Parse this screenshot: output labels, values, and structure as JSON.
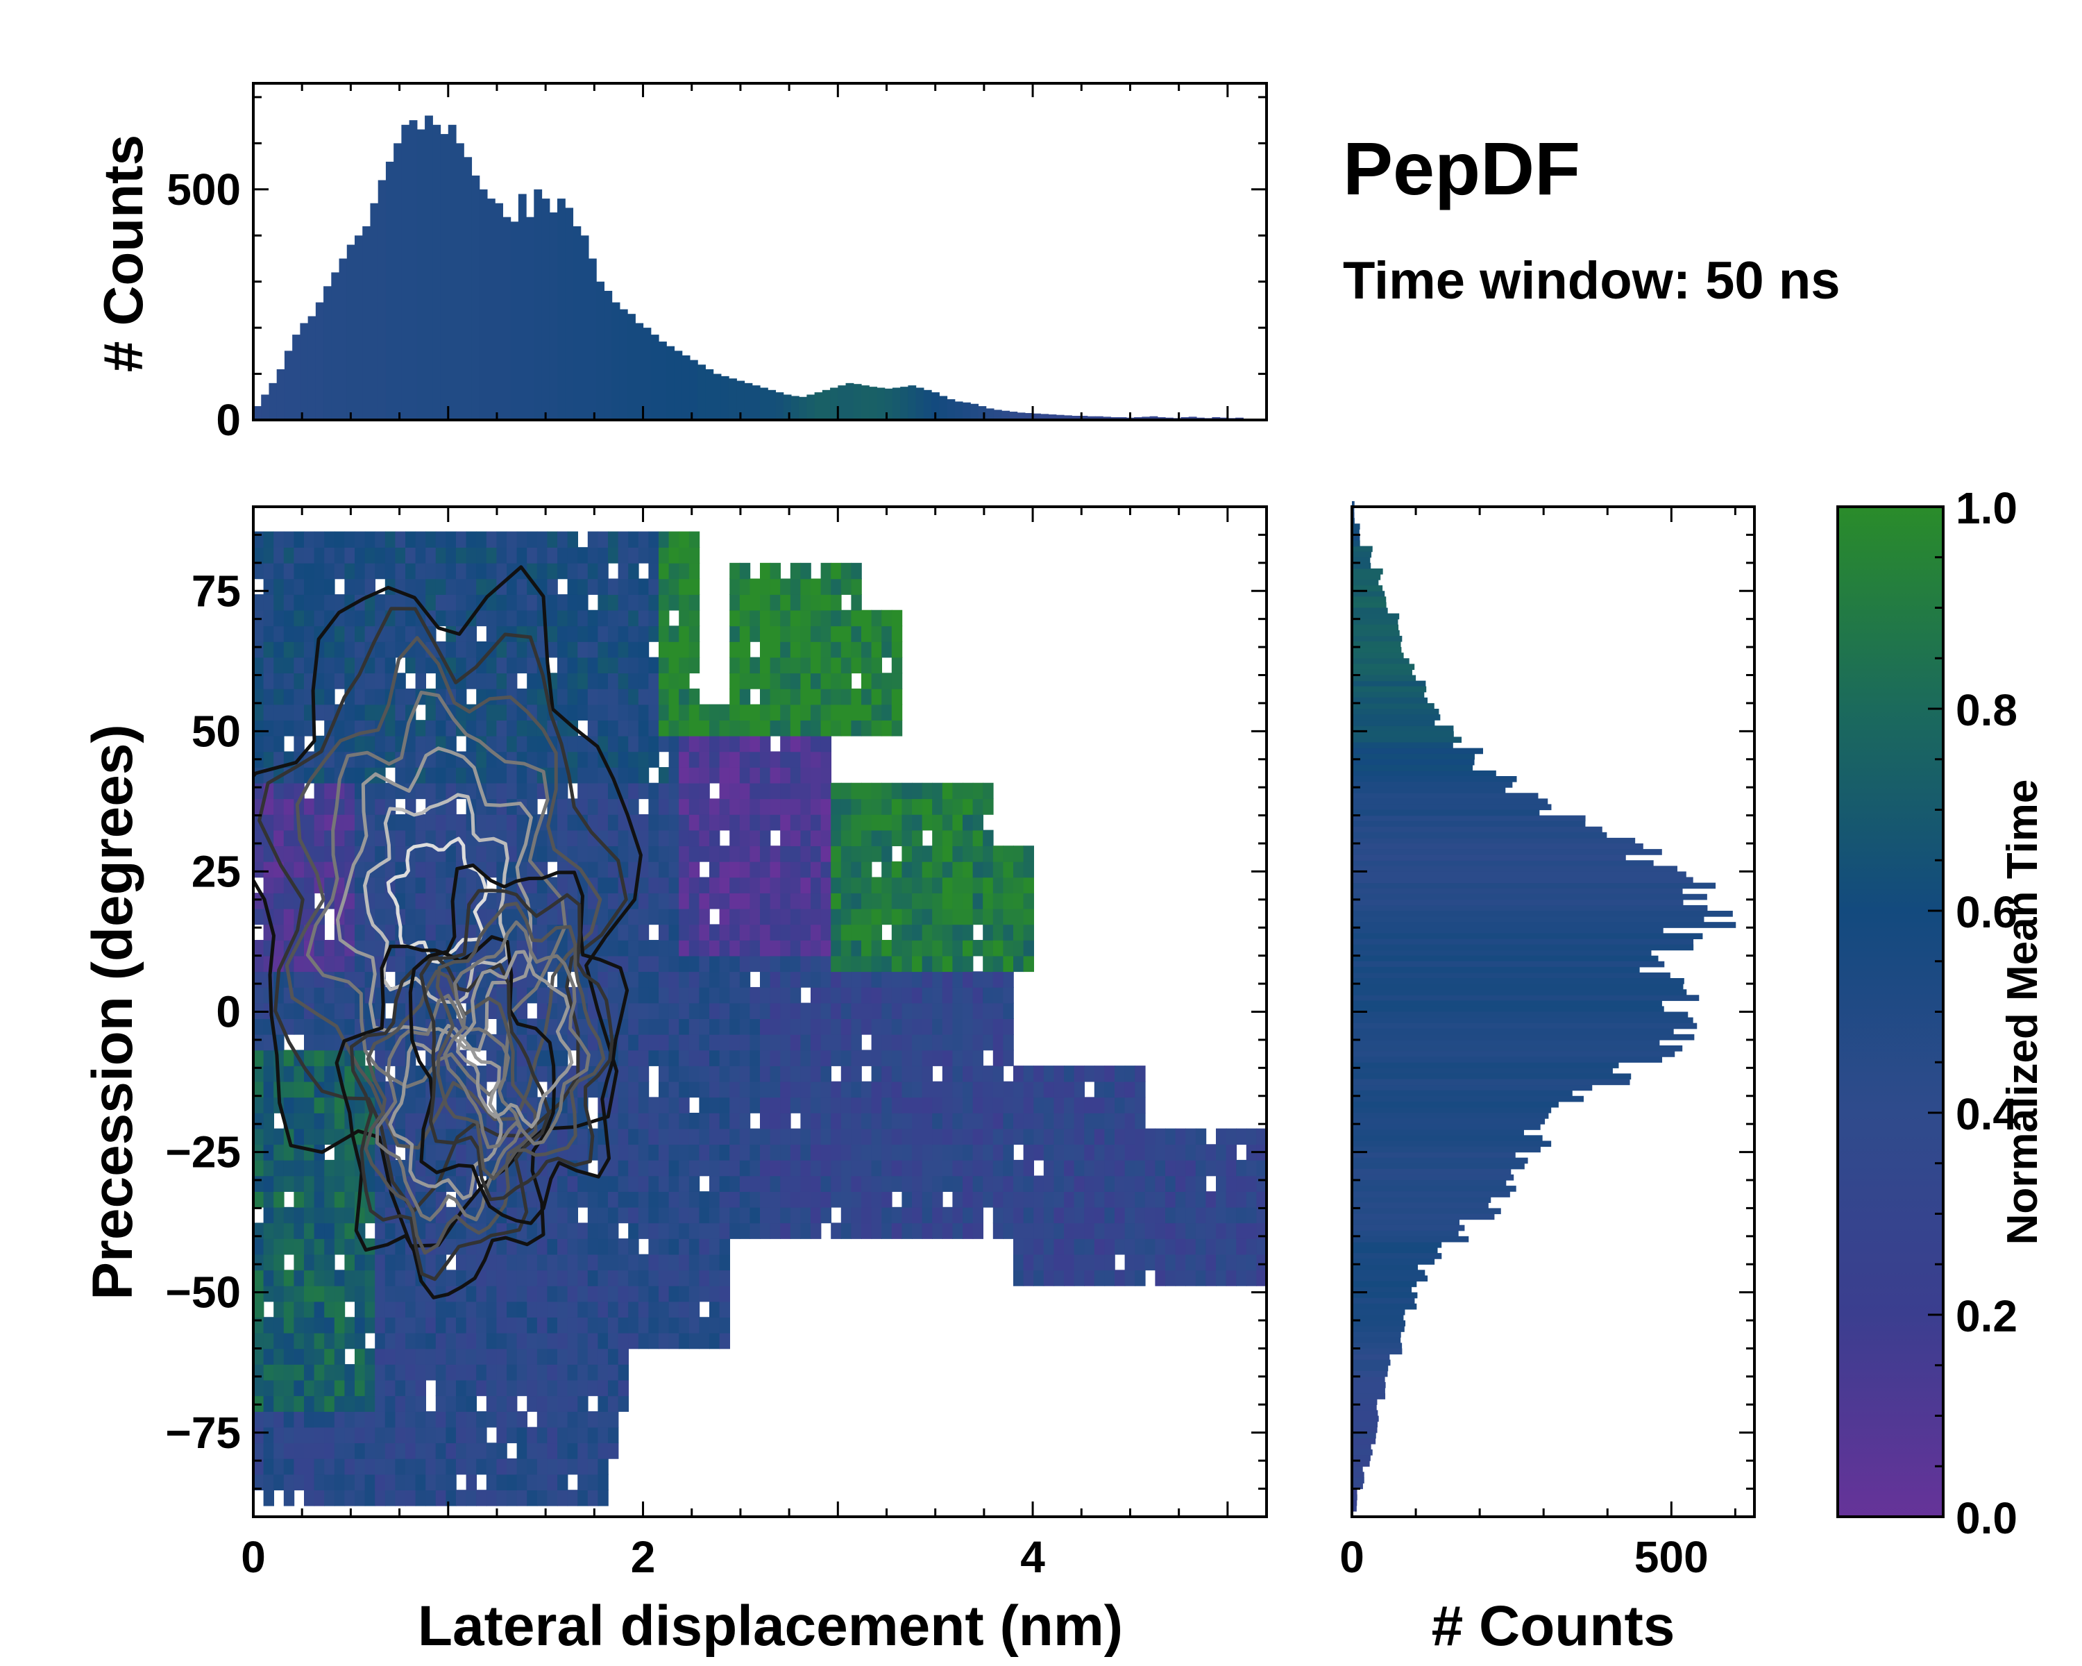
{
  "figure": {
    "title": "PepDF",
    "subtitle": "Time window: 50 ns"
  },
  "chart_data": [
    {
      "id": "top-histogram",
      "type": "bar",
      "title": "",
      "xlabel": "",
      "ylabel": "# Counts",
      "xlim": [
        0,
        5.2
      ],
      "ylim": [
        0,
        730
      ],
      "yticks": [
        0,
        500
      ],
      "bin_centers": [
        0.02,
        0.06,
        0.1,
        0.14,
        0.18,
        0.22,
        0.26,
        0.3,
        0.34,
        0.38,
        0.42,
        0.46,
        0.5,
        0.54,
        0.58,
        0.62,
        0.66,
        0.7,
        0.74,
        0.78,
        0.82,
        0.86,
        0.9,
        0.94,
        0.98,
        1.02,
        1.06,
        1.1,
        1.14,
        1.18,
        1.22,
        1.26,
        1.3,
        1.34,
        1.38,
        1.42,
        1.46,
        1.5,
        1.54,
        1.58,
        1.62,
        1.66,
        1.7,
        1.74,
        1.78,
        1.82,
        1.86,
        1.9,
        1.94,
        1.98,
        2.02,
        2.06,
        2.1,
        2.14,
        2.18,
        2.22,
        2.26,
        2.3,
        2.34,
        2.38,
        2.42,
        2.46,
        2.5,
        2.54,
        2.58,
        2.62,
        2.66,
        2.7,
        2.74,
        2.78,
        2.82,
        2.86,
        2.9,
        2.94,
        2.98,
        3.02,
        3.06,
        3.1,
        3.14,
        3.18,
        3.22,
        3.26,
        3.3,
        3.34,
        3.38,
        3.42,
        3.46,
        3.5,
        3.54,
        3.58,
        3.62,
        3.66,
        3.7,
        3.74,
        3.78,
        3.82,
        3.86,
        3.9,
        3.94,
        3.98,
        4.02,
        4.06,
        4.1,
        4.14,
        4.18,
        4.22,
        4.26,
        4.3,
        4.34,
        4.38,
        4.42,
        4.46,
        4.5,
        4.54,
        4.58,
        4.62,
        4.66,
        4.7,
        4.74,
        4.78,
        4.82,
        4.86,
        4.9,
        4.94,
        4.98,
        5.02,
        5.06,
        5.1,
        5.14,
        5.18
      ],
      "counts": [
        30,
        55,
        80,
        110,
        150,
        185,
        210,
        225,
        255,
        290,
        320,
        350,
        380,
        400,
        420,
        470,
        520,
        560,
        600,
        640,
        650,
        630,
        660,
        640,
        620,
        640,
        600,
        570,
        530,
        500,
        480,
        470,
        440,
        430,
        490,
        440,
        500,
        480,
        450,
        480,
        460,
        420,
        400,
        350,
        300,
        280,
        255,
        240,
        230,
        210,
        200,
        185,
        170,
        160,
        150,
        140,
        130,
        120,
        110,
        100,
        95,
        90,
        85,
        80,
        75,
        70,
        65,
        60,
        55,
        52,
        50,
        55,
        60,
        65,
        70,
        75,
        80,
        78,
        75,
        72,
        70,
        68,
        70,
        72,
        75,
        70,
        65,
        60,
        52,
        45,
        40,
        38,
        35,
        30,
        25,
        22,
        20,
        18,
        16,
        15,
        14,
        13,
        12,
        11,
        10,
        9,
        9,
        8,
        8,
        7,
        6,
        6,
        5,
        6,
        7,
        8,
        6,
        5,
        4,
        6,
        7,
        5,
        4,
        6,
        5,
        4,
        5
      ],
      "bar_mean_time": [
        0.42,
        0.43,
        0.44,
        0.44,
        0.45,
        0.45,
        0.46,
        0.46,
        0.46,
        0.47,
        0.47,
        0.47,
        0.48,
        0.48,
        0.48,
        0.48,
        0.48,
        0.49,
        0.49,
        0.49,
        0.49,
        0.5,
        0.5,
        0.5,
        0.5,
        0.5,
        0.5,
        0.5,
        0.5,
        0.51,
        0.51,
        0.51,
        0.51,
        0.52,
        0.52,
        0.52,
        0.53,
        0.53,
        0.53,
        0.54,
        0.54,
        0.55,
        0.55,
        0.55,
        0.56,
        0.56,
        0.57,
        0.57,
        0.58,
        0.58,
        0.58,
        0.59,
        0.59,
        0.6,
        0.6,
        0.6,
        0.6,
        0.61,
        0.61,
        0.61,
        0.61,
        0.62,
        0.62,
        0.62,
        0.62,
        0.63,
        0.63,
        0.64,
        0.66,
        0.68,
        0.7,
        0.72,
        0.74,
        0.74,
        0.73,
        0.72,
        0.72,
        0.73,
        0.74,
        0.74,
        0.73,
        0.72,
        0.7,
        0.68,
        0.66,
        0.64,
        0.62,
        0.6,
        0.58,
        0.56,
        0.54,
        0.52,
        0.5,
        0.48,
        0.46,
        0.44,
        0.42,
        0.4,
        0.38,
        0.37,
        0.36,
        0.35,
        0.34,
        0.34,
        0.34,
        0.33,
        0.33,
        0.33,
        0.32,
        0.32,
        0.32,
        0.32,
        0.31,
        0.31,
        0.31,
        0.31,
        0.3,
        0.3,
        0.3,
        0.3,
        0.3,
        0.3,
        0.3,
        0.3,
        0.3,
        0.3,
        0.3,
        0.3,
        0.3,
        0.3
      ]
    },
    {
      "id": "main-heatmap",
      "type": "heatmap",
      "title": "",
      "xlabel": "Lateral displacement (nm)",
      "ylabel": "Precession (degrees)",
      "xlim": [
        0,
        5.2
      ],
      "ylim": [
        -90,
        90
      ],
      "xticks": [
        0,
        2,
        4
      ],
      "yticks": [
        -75,
        -50,
        -25,
        0,
        25,
        50,
        75
      ],
      "grid": false,
      "colorbar_label": "Normalized Mean Time",
      "regions": [
        {
          "name": "main-cluster",
          "x_range": [
            0,
            2.6
          ],
          "y_range": [
            -88,
            88
          ],
          "mean_time": 0.45
        },
        {
          "name": "upper-right-lobe",
          "x_range": [
            2.1,
            3.3
          ],
          "y_range": [
            50,
            78
          ],
          "mean_time": 0.95
        },
        {
          "name": "middle-right-lobe",
          "x_range": [
            3.0,
            4.0
          ],
          "y_range": [
            8,
            42
          ],
          "mean_time": 0.9
        },
        {
          "name": "purple-band",
          "x_range": [
            2.2,
            3.0
          ],
          "y_range": [
            15,
            50
          ],
          "mean_time": 0.12
        },
        {
          "name": "lower-right-tail",
          "x_range": [
            2.6,
            5.2
          ],
          "y_range": [
            -48,
            -5
          ],
          "mean_time": 0.35
        },
        {
          "name": "left-green-band",
          "x_range": [
            0,
            0.6
          ],
          "y_range": [
            -70,
            -10
          ],
          "mean_time": 0.75
        }
      ],
      "density_peaks": [
        {
          "x": 0.95,
          "y": 20,
          "level": "highest"
        },
        {
          "x": 1.0,
          "y": -18,
          "level": "high"
        },
        {
          "x": 1.35,
          "y": -5,
          "level": "high"
        }
      ]
    },
    {
      "id": "right-histogram",
      "type": "bar",
      "orientation": "horizontal",
      "xlabel": "# Counts",
      "ylabel": "",
      "xlim": [
        0,
        630
      ],
      "xticks": [
        0,
        500
      ],
      "ylim": [
        -90,
        90
      ],
      "bin_centers": [
        -87,
        -83,
        -79,
        -75,
        -71,
        -67,
        -63,
        -59,
        -55,
        -51,
        -47,
        -43,
        -39,
        -35,
        -31,
        -27,
        -23,
        -19,
        -15,
        -11,
        -7,
        -3,
        1,
        5,
        9,
        13,
        17,
        21,
        25,
        29,
        33,
        37,
        41,
        45,
        49,
        53,
        57,
        61,
        65,
        69,
        73,
        77,
        81,
        85,
        89
      ],
      "counts": [
        8,
        18,
        30,
        38,
        42,
        52,
        60,
        75,
        85,
        95,
        110,
        140,
        180,
        220,
        250,
        270,
        290,
        310,
        350,
        420,
        480,
        520,
        510,
        490,
        470,
        520,
        560,
        540,
        510,
        450,
        380,
        290,
        240,
        200,
        160,
        140,
        120,
        95,
        80,
        70,
        55,
        45,
        30,
        12,
        4
      ],
      "bar_mean_time": [
        0.3,
        0.31,
        0.32,
        0.34,
        0.36,
        0.4,
        0.44,
        0.48,
        0.52,
        0.55,
        0.55,
        0.54,
        0.5,
        0.48,
        0.47,
        0.48,
        0.5,
        0.52,
        0.53,
        0.52,
        0.5,
        0.52,
        0.54,
        0.55,
        0.54,
        0.52,
        0.48,
        0.45,
        0.44,
        0.45,
        0.47,
        0.5,
        0.55,
        0.6,
        0.65,
        0.68,
        0.7,
        0.72,
        0.74,
        0.75,
        0.74,
        0.72,
        0.68,
        0.62,
        0.55
      ]
    },
    {
      "id": "colorbar",
      "type": "colorbar",
      "label": "Normalized Mean Time",
      "range": [
        0.0,
        1.0
      ],
      "ticks": [
        "0.0",
        "0.2",
        "0.4",
        "0.6",
        "0.8",
        "1.0"
      ],
      "stops": [
        "#663399",
        "#3b3e8f",
        "#2f4b8c",
        "#134a7e",
        "#1b6a5c",
        "#2a8c2a"
      ]
    }
  ]
}
